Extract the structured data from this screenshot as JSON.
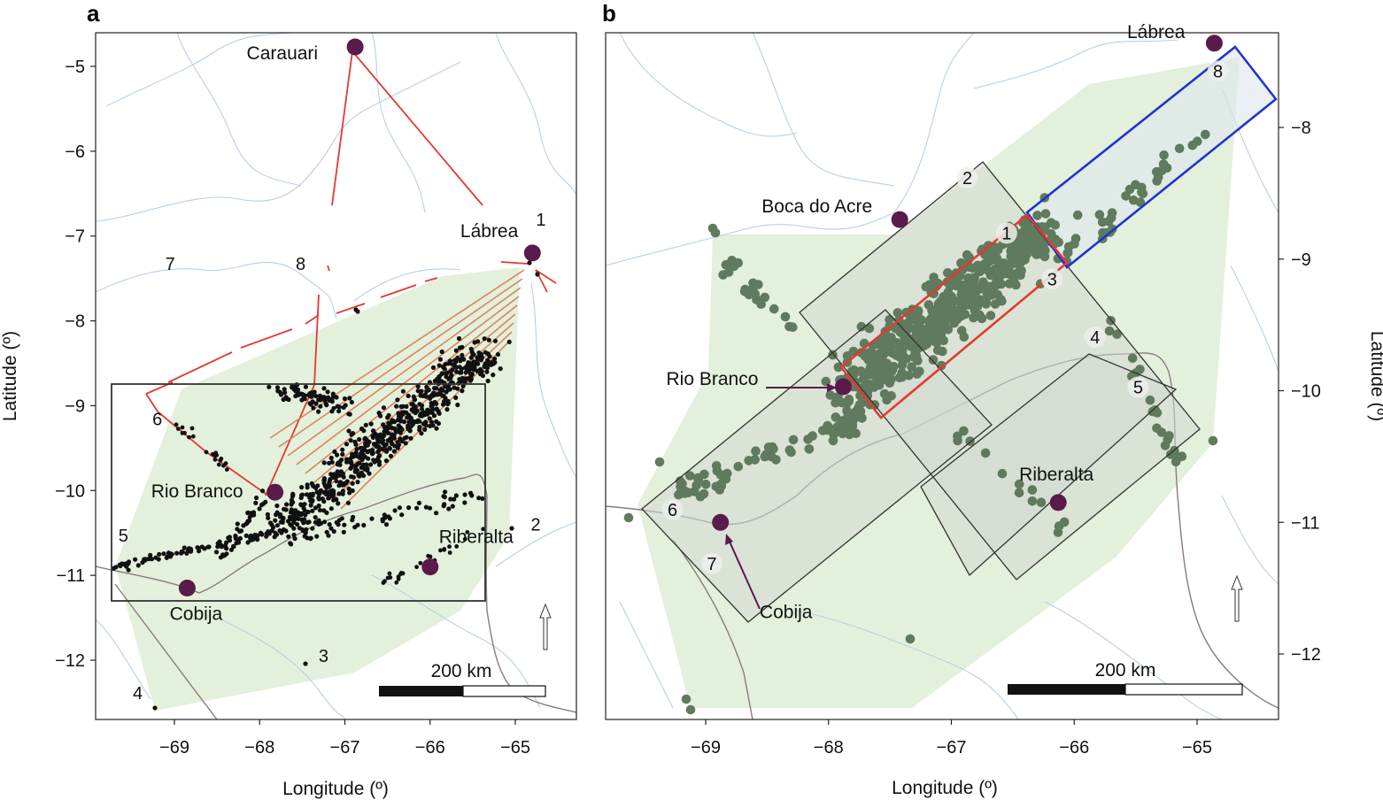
{
  "colors": {
    "hull": "#e3f0dc",
    "river": "#b9cfe6",
    "city": "#5a1a4a",
    "points_a": "#111111",
    "points_b": "#5f7a5c",
    "transect_red": "#e23a32",
    "transect_orange": "#d9855a",
    "box_blue": "#2233cc",
    "box_black": "#333333",
    "box_fill": "#d4d8d2"
  },
  "panel_a": {
    "letter": "a",
    "x_ticks": [
      {
        "value": -69,
        "label": "−69"
      },
      {
        "value": -68,
        "label": "−68"
      },
      {
        "value": -67,
        "label": "−67"
      },
      {
        "value": -66,
        "label": "−66"
      },
      {
        "value": -65,
        "label": "−65"
      }
    ],
    "y_ticks": [
      {
        "value": -5,
        "label": "−5"
      },
      {
        "value": -6,
        "label": "−6"
      },
      {
        "value": -7,
        "label": "−7"
      },
      {
        "value": -8,
        "label": "−8"
      },
      {
        "value": -9,
        "label": "−9"
      },
      {
        "value": -10,
        "label": "−10"
      },
      {
        "value": -11,
        "label": "−11"
      },
      {
        "value": -12,
        "label": "−12"
      }
    ],
    "xlabel": "Longitude (º)",
    "ylabel": "Latitude (º)",
    "cities": [
      {
        "name": "Carauari",
        "lon": -66.88,
        "lat": -4.77
      },
      {
        "name": "Lábrea",
        "lon": -64.8,
        "lat": -7.2
      },
      {
        "name": "Rio Branco",
        "lon": -67.82,
        "lat": -10.02
      },
      {
        "name": "Riberalta",
        "lon": -66.0,
        "lat": -10.9
      },
      {
        "name": "Cobija",
        "lon": -68.85,
        "lat": -11.15
      }
    ],
    "transect_labels": [
      {
        "text": "1",
        "lon": -64.7,
        "lat": -6.88
      },
      {
        "text": "2",
        "lon": -64.76,
        "lat": -10.47
      },
      {
        "text": "3",
        "lon": -67.25,
        "lat": -12.02
      },
      {
        "text": "4",
        "lon": -69.43,
        "lat": -12.46
      },
      {
        "text": "5",
        "lon": -69.6,
        "lat": -10.6
      },
      {
        "text": "6",
        "lon": -69.2,
        "lat": -9.23
      },
      {
        "text": "7",
        "lon": -69.05,
        "lat": -7.4
      },
      {
        "text": "8",
        "lon": -67.52,
        "lat": -7.4
      }
    ],
    "scale_bar": {
      "label": "200 km"
    }
  },
  "panel_b": {
    "letter": "b",
    "x_ticks": [
      {
        "value": -69,
        "label": "−69"
      },
      {
        "value": -68,
        "label": "−68"
      },
      {
        "value": -67,
        "label": "−67"
      },
      {
        "value": -66,
        "label": "−66"
      },
      {
        "value": -65,
        "label": "−65"
      }
    ],
    "y_ticks": [
      {
        "value": -8,
        "label": "−8"
      },
      {
        "value": -9,
        "label": "−9"
      },
      {
        "value": -10,
        "label": "−10"
      },
      {
        "value": -11,
        "label": "−11"
      },
      {
        "value": -12,
        "label": "−12"
      }
    ],
    "xlabel": "Longitude (º)",
    "ylabel": "Latitude (º)",
    "cities": [
      {
        "name": "Lábrea",
        "lon": -64.86,
        "lat": -7.36
      },
      {
        "name": "Boca do Acre",
        "lon": -67.42,
        "lat": -8.7
      },
      {
        "name": "Rio Branco",
        "lon": -67.88,
        "lat": -9.97
      },
      {
        "name": "Riberalta",
        "lon": -66.13,
        "lat": -10.85
      },
      {
        "name": "Cobija",
        "lon": -68.88,
        "lat": -11.0
      }
    ],
    "box_labels": [
      {
        "text": "1",
        "lon": -66.55,
        "lat": -8.85
      },
      {
        "text": "2",
        "lon": -66.87,
        "lat": -8.43
      },
      {
        "text": "3",
        "lon": -66.18,
        "lat": -9.2
      },
      {
        "text": "4",
        "lon": -65.83,
        "lat": -9.64
      },
      {
        "text": "5",
        "lon": -65.48,
        "lat": -10.02
      },
      {
        "text": "6",
        "lon": -69.27,
        "lat": -10.95
      },
      {
        "text": "7",
        "lon": -68.95,
        "lat": -11.36
      },
      {
        "text": "8",
        "lon": -64.83,
        "lat": -7.62
      }
    ],
    "scale_bar": {
      "label": "200 km"
    }
  }
}
